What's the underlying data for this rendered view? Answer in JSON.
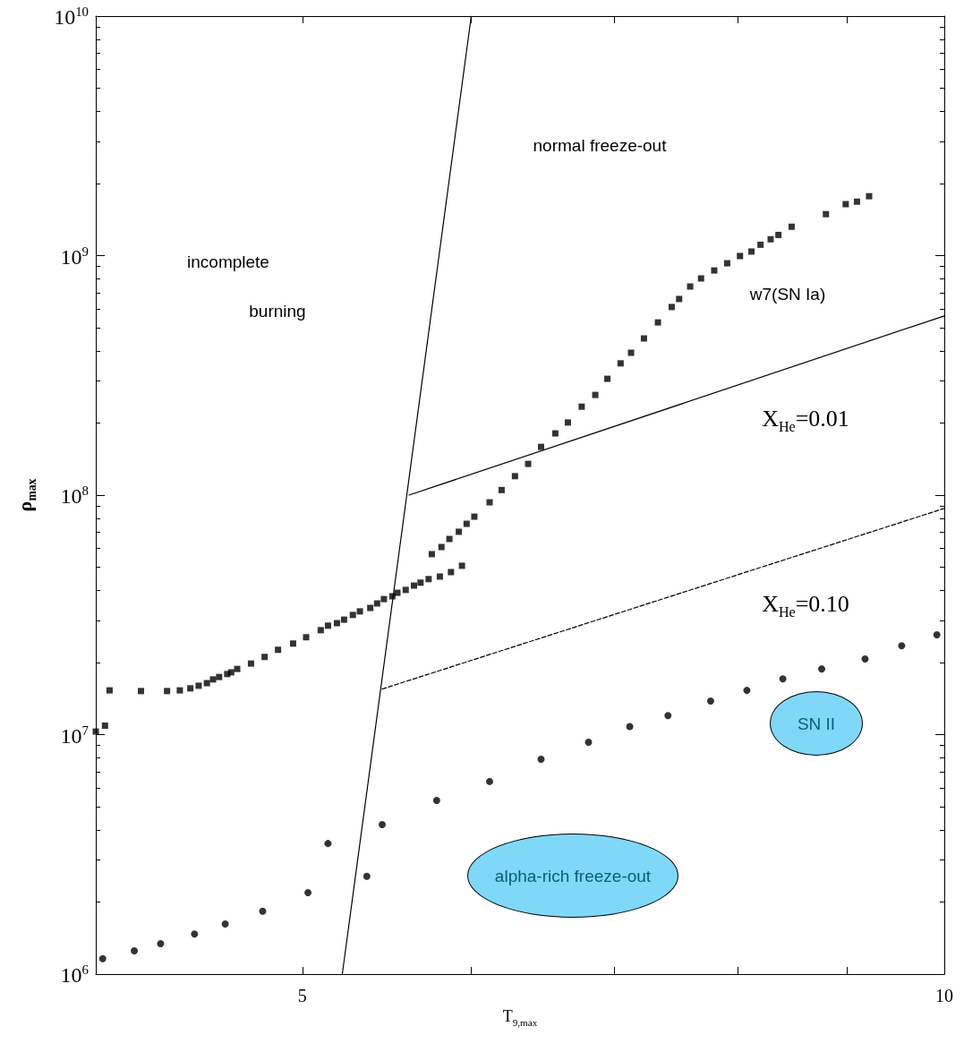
{
  "chart_data": {
    "type": "scatter",
    "xlabel": "T$_{9,max}$",
    "ylabel": "ρ$_{max}$",
    "log": "xy",
    "grid": false,
    "xlim": [
      4,
      10
    ],
    "xticks": [
      {
        "value": 5,
        "label": "5"
      },
      {
        "value": 6,
        "label": null
      },
      {
        "value": 7,
        "label": null
      },
      {
        "value": 8,
        "label": null
      },
      {
        "value": 9,
        "label": null
      },
      {
        "value": 10,
        "label": "10"
      }
    ],
    "ylim": [
      1000000,
      10000000000
    ],
    "yticks": [
      {
        "value": 1000000,
        "label": "10$^{6}$"
      },
      {
        "value": 10000000,
        "label": "10$^{7}$"
      },
      {
        "value": 100000000,
        "label": "10$^{8}$"
      },
      {
        "value": 1000000000,
        "label": "10$^{9}$"
      },
      {
        "value": 10000000000,
        "label": "10$^{10}$"
      }
    ],
    "series": [
      {
        "type": "scatter",
        "marker": "square",
        "color": "#000000",
        "x": [
          4.0,
          4.04,
          4.06,
          4.2,
          4.32,
          4.38,
          4.43,
          4.47,
          4.51,
          4.54,
          4.57,
          4.61,
          4.63,
          4.66,
          4.73,
          4.8,
          4.87,
          4.95,
          5.02,
          5.1,
          5.14,
          5.19,
          5.23,
          5.28,
          5.32,
          5.38,
          5.42,
          5.46,
          5.51,
          5.54,
          5.59,
          5.64,
          5.68,
          5.73,
          5.8,
          5.87,
          5.94,
          5.75,
          5.81,
          5.86,
          5.92,
          5.97,
          6.02,
          6.12,
          6.2,
          6.29,
          6.38,
          6.47,
          6.57,
          6.66,
          6.76,
          6.86,
          6.95,
          7.05,
          7.13,
          7.23,
          7.34,
          7.45,
          7.51,
          7.6,
          7.69,
          7.8,
          7.91,
          8.02,
          8.12,
          8.2,
          8.29,
          8.36,
          8.48,
          8.8,
          8.99,
          9.1,
          9.22
        ],
        "values": [
          10300000,
          10900000,
          15300000,
          15200000,
          15200000,
          15300000,
          15600000,
          16000000,
          16400000,
          17000000,
          17400000,
          17900000,
          18200000,
          18800000,
          19800000,
          21100000,
          22600000,
          24000000,
          25500000,
          27300000,
          28500000,
          29200000,
          30200000,
          31600000,
          32700000,
          33800000,
          35300000,
          36800000,
          37800000,
          39100000,
          40200000,
          41900000,
          43100000,
          44600000,
          45700000,
          47700000,
          50700000,
          56700000,
          60700000,
          65600000,
          70300000,
          75900000,
          81300000,
          93300000,
          105000000,
          120000000,
          135000000,
          159000000,
          181000000,
          201000000,
          234000000,
          262000000,
          306000000,
          355000000,
          393000000,
          451000000,
          526000000,
          610000000,
          659000000,
          743000000,
          803000000,
          867000000,
          929000000,
          996000000,
          1040000000,
          1110000000,
          1170000000,
          1220000000,
          1320000000,
          1490000000,
          1640000000,
          1680000000,
          1770000000
        ]
      },
      {
        "type": "scatter",
        "marker": "circle",
        "color": "#000000",
        "x": [
          4.03,
          4.17,
          4.29,
          4.45,
          4.6,
          4.79,
          5.03,
          5.14,
          5.36,
          5.45,
          5.78,
          6.12,
          6.47,
          6.81,
          7.12,
          7.42,
          7.77,
          8.08,
          8.4,
          8.76,
          9.18,
          9.55,
          9.92
        ],
        "values": [
          1160000,
          1250000,
          1340000,
          1470000,
          1620000,
          1830000,
          2190000,
          3510000,
          2560000,
          4210000,
          5310000,
          6370000,
          7890000,
          9290000,
          10800000,
          12000000,
          13800000,
          15300000,
          17100000,
          18800000,
          20700000,
          23500000,
          26100000
        ]
      },
      {
        "type": "line",
        "marker": "none",
        "line_style": "solid",
        "color": "#000000",
        "x": [
          5.22,
          6.0
        ],
        "values": [
          1000000,
          10000000000
        ]
      },
      {
        "type": "line",
        "marker": "none",
        "line_style": "solid",
        "color": "#000000",
        "x": [
          5.61,
          10
        ],
        "values": [
          100000000,
          560000000
        ]
      },
      {
        "type": "line",
        "marker": "none",
        "line_style": "dashed",
        "color": "#000000",
        "x": [
          5.45,
          10
        ],
        "values": [
          15500000,
          88000000
        ]
      }
    ],
    "annotations": [
      "incomplete",
      "burning",
      "normal freeze-out",
      "w7(SN Ia)",
      "X$_{He}$=0.01",
      "X$_{He}$=0.10",
      "SN II",
      "alpha-rich freeze-out"
    ]
  }
}
